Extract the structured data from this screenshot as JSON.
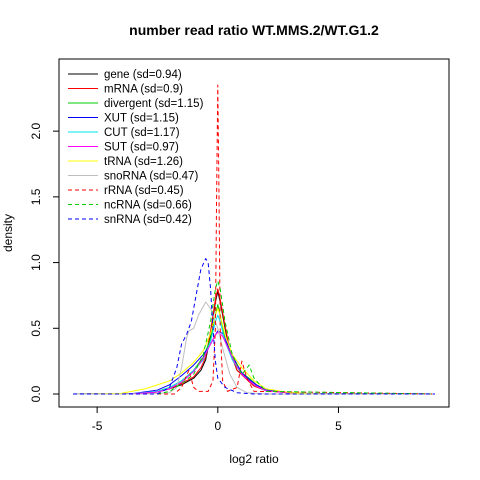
{
  "chart_data": {
    "type": "line",
    "title": "number read ratio WT.MMS.2/WT.G1.2",
    "xlabel": "log2 ratio",
    "ylabel": "density",
    "xlim": [
      -6,
      9
    ],
    "ylim": [
      0,
      2.45
    ],
    "x_ticks": [
      -5,
      0,
      5
    ],
    "x_tick_labels": [
      "-5",
      "0",
      "5"
    ],
    "y_ticks": [
      0.0,
      0.5,
      1.0,
      1.5,
      2.0
    ],
    "y_tick_labels": [
      "0.0",
      "0.5",
      "1.0",
      "1.5",
      "2.0"
    ],
    "grid": false,
    "legend_position": "top-left",
    "series": [
      {
        "name": "gene (sd=0.94)",
        "color": "#000000",
        "dash": "solid",
        "x": [
          -6,
          -3.5,
          -2.5,
          -2,
          -1.5,
          -1,
          -0.7,
          -0.5,
          -0.3,
          -0.1,
          0,
          0.1,
          0.3,
          0.5,
          0.8,
          1.2,
          1.5,
          2,
          3,
          4,
          9
        ],
        "y": [
          0,
          0.002,
          0.015,
          0.04,
          0.07,
          0.12,
          0.18,
          0.26,
          0.45,
          0.7,
          0.78,
          0.7,
          0.5,
          0.32,
          0.18,
          0.12,
          0.07,
          0.03,
          0.01,
          0.002,
          0
        ]
      },
      {
        "name": "mRNA (sd=0.9)",
        "color": "#ff0000",
        "dash": "solid",
        "x": [
          -6,
          -3.5,
          -2.5,
          -2,
          -1.5,
          -1,
          -0.7,
          -0.5,
          -0.3,
          -0.1,
          0,
          0.1,
          0.3,
          0.5,
          0.8,
          1.2,
          1.5,
          2,
          3,
          4,
          9
        ],
        "y": [
          0,
          0.002,
          0.015,
          0.04,
          0.08,
          0.13,
          0.2,
          0.28,
          0.48,
          0.72,
          0.8,
          0.72,
          0.52,
          0.33,
          0.18,
          0.11,
          0.06,
          0.025,
          0.008,
          0.002,
          0
        ]
      },
      {
        "name": "divergent (sd=1.15)",
        "color": "#00cd00",
        "dash": "solid",
        "x": [
          -6,
          -3.5,
          -2.5,
          -2,
          -1.5,
          -1,
          -0.6,
          -0.3,
          -0.1,
          0,
          0.1,
          0.3,
          0.6,
          1,
          1.3,
          1.6,
          2,
          3,
          4,
          9
        ],
        "y": [
          0,
          0.003,
          0.02,
          0.05,
          0.1,
          0.18,
          0.28,
          0.42,
          0.6,
          0.68,
          0.6,
          0.42,
          0.28,
          0.16,
          0.12,
          0.07,
          0.03,
          0.01,
          0.002,
          0
        ]
      },
      {
        "name": "XUT (sd=1.15)",
        "color": "#0000ff",
        "dash": "solid",
        "x": [
          -6,
          -3.5,
          -2.5,
          -2,
          -1.5,
          -1,
          -0.6,
          -0.3,
          -0.1,
          0,
          0.2,
          0.4,
          0.7,
          1,
          1.3,
          1.6,
          2,
          3,
          4,
          9
        ],
        "y": [
          0,
          0.004,
          0.03,
          0.07,
          0.14,
          0.22,
          0.3,
          0.38,
          0.45,
          0.48,
          0.46,
          0.38,
          0.26,
          0.16,
          0.11,
          0.07,
          0.03,
          0.01,
          0.002,
          0
        ]
      },
      {
        "name": "CUT (sd=1.17)",
        "color": "#00e5ee",
        "dash": "solid",
        "x": [
          -6,
          -3.5,
          -2.5,
          -2,
          -1.5,
          -1,
          -0.6,
          -0.3,
          -0.1,
          0,
          0.1,
          0.3,
          0.6,
          1,
          1.3,
          1.6,
          2,
          3,
          4,
          9
        ],
        "y": [
          0,
          0.003,
          0.02,
          0.05,
          0.1,
          0.18,
          0.26,
          0.4,
          0.55,
          0.6,
          0.55,
          0.4,
          0.26,
          0.15,
          0.1,
          0.06,
          0.025,
          0.008,
          0.002,
          0
        ]
      },
      {
        "name": "SUT (sd=0.97)",
        "color": "#ff00ff",
        "dash": "solid",
        "x": [
          -6,
          -3.5,
          -2.5,
          -2,
          -1.5,
          -1,
          -0.6,
          -0.3,
          -0.1,
          0,
          0.2,
          0.4,
          0.7,
          1,
          1.3,
          1.6,
          2,
          3,
          4,
          9
        ],
        "y": [
          0,
          0.002,
          0.015,
          0.04,
          0.09,
          0.17,
          0.27,
          0.38,
          0.45,
          0.47,
          0.44,
          0.36,
          0.24,
          0.15,
          0.1,
          0.06,
          0.025,
          0.008,
          0.002,
          0
        ]
      },
      {
        "name": "tRNA (sd=1.26)",
        "color": "#ffff00",
        "dash": "solid",
        "x": [
          -6,
          -4,
          -3,
          -2,
          -1.5,
          -1,
          -0.6,
          -0.3,
          -0.1,
          0,
          0.1,
          0.3,
          0.6,
          1,
          1.5,
          2,
          3,
          4,
          9
        ],
        "y": [
          0,
          0.005,
          0.04,
          0.1,
          0.16,
          0.24,
          0.33,
          0.46,
          0.6,
          0.65,
          0.6,
          0.45,
          0.3,
          0.2,
          0.1,
          0.04,
          0.01,
          0.002,
          0
        ]
      },
      {
        "name": "snoRNA (sd=0.47)",
        "color": "#bebebe",
        "dash": "solid",
        "x": [
          -6,
          -3,
          -2,
          -1.7,
          -1.5,
          -1.3,
          -1.2,
          -1.0,
          -0.8,
          -0.5,
          -0.3,
          -0.1,
          0,
          0.2,
          0.5,
          0.8,
          1.2,
          2,
          9
        ],
        "y": [
          0,
          0,
          0.01,
          0.05,
          0.2,
          0.42,
          0.48,
          0.5,
          0.6,
          0.7,
          0.65,
          0.55,
          0.5,
          0.35,
          0.15,
          0.05,
          0.01,
          0,
          0
        ]
      },
      {
        "name": "rRNA (sd=0.45)",
        "color": "#ff0000",
        "dash": "dashed",
        "x": [
          -6,
          -1.8,
          -1.5,
          -1.2,
          -1.0,
          -0.8,
          -0.4,
          -0.2,
          -0.1,
          -0.05,
          0,
          0.05,
          0.1,
          0.2,
          0.4,
          0.8,
          1.0,
          1.2,
          1.5,
          9
        ],
        "y": [
          0,
          0,
          0.05,
          0.18,
          0.05,
          0.02,
          0.02,
          0.1,
          0.5,
          1.5,
          2.35,
          1.5,
          0.5,
          0.1,
          0.02,
          0.05,
          0.25,
          0.12,
          0.02,
          0
        ]
      },
      {
        "name": "ncRNA (sd=0.66)",
        "color": "#00cd00",
        "dash": "dashed",
        "x": [
          -6,
          -2.5,
          -2,
          -1.5,
          -1,
          -0.6,
          -0.3,
          -0.1,
          0,
          0.1,
          0.3,
          0.6,
          1,
          1.3,
          1.5,
          2,
          9
        ],
        "y": [
          0,
          0,
          0.02,
          0.08,
          0.15,
          0.3,
          0.55,
          0.8,
          0.86,
          0.8,
          0.55,
          0.3,
          0.15,
          0.22,
          0.12,
          0.02,
          0
        ]
      },
      {
        "name": "snRNA (sd=0.42)",
        "color": "#0000ff",
        "dash": "dashed",
        "x": [
          -6,
          -2.5,
          -2,
          -1.7,
          -1.5,
          -1.3,
          -1.1,
          -0.9,
          -0.7,
          -0.5,
          -0.4,
          -0.3,
          -0.2,
          -0.1,
          0,
          0.3,
          0.8,
          1.5,
          9
        ],
        "y": [
          0,
          0,
          0.05,
          0.2,
          0.38,
          0.45,
          0.55,
          0.75,
          0.95,
          1.03,
          1.0,
          0.8,
          0.5,
          0.25,
          0.12,
          0.05,
          0.01,
          0,
          0
        ]
      }
    ]
  }
}
